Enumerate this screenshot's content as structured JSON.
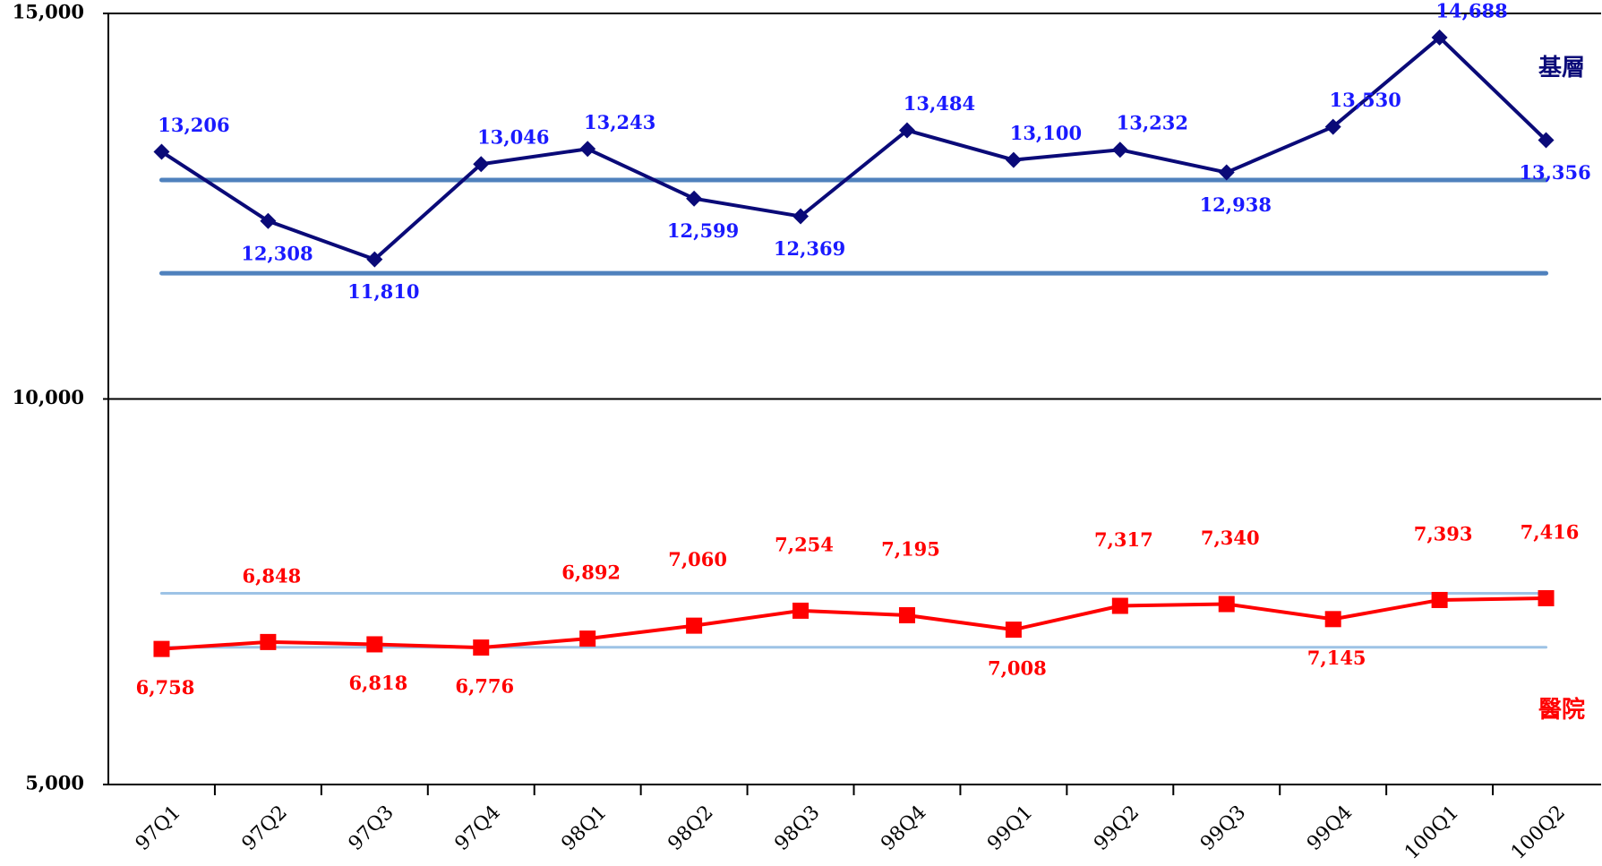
{
  "chart_data": {
    "type": "line",
    "categories": [
      "97Q1",
      "97Q2",
      "97Q3",
      "97Q4",
      "98Q1",
      "98Q2",
      "98Q3",
      "98Q4",
      "99Q1",
      "99Q2",
      "99Q3",
      "99Q4",
      "100Q1",
      "100Q2"
    ],
    "series": [
      {
        "name": "基層",
        "color": "#0a0a78",
        "marker": "diamond",
        "values": [
          13206,
          12308,
          11810,
          13046,
          13243,
          12599,
          12369,
          13484,
          13100,
          13232,
          12938,
          13530,
          14688,
          13356
        ],
        "value_labels": [
          "13,206",
          "12,308",
          "11,810",
          "13,046",
          "13,243",
          "12,599",
          "12,369",
          "13,484",
          "13,100",
          "13,232",
          "12,938",
          "13,530",
          "14,688",
          "13,356"
        ],
        "label_color": "#1a1aff"
      },
      {
        "name": "醫院",
        "color": "#ff0000",
        "marker": "square",
        "values": [
          6758,
          6848,
          6818,
          6776,
          6892,
          7060,
          7254,
          7195,
          7008,
          7317,
          7340,
          7145,
          7393,
          7416
        ],
        "value_labels": [
          "6,758",
          "6,848",
          "6,818",
          "6,776",
          "6,892",
          "7,060",
          "7,254",
          "7,195",
          "7,008",
          "7,317",
          "7,340",
          "7,145",
          "7,393",
          "7,416"
        ],
        "label_color": "#ff0000"
      }
    ],
    "reference_lines": [
      {
        "value": 12840,
        "color": "#4f81bd"
      },
      {
        "value": 11630,
        "color": "#4f81bd"
      },
      {
        "value": 7480,
        "color": "#9dc3e6"
      },
      {
        "value": 6780,
        "color": "#9dc3e6"
      }
    ],
    "ylim": [
      5000,
      15000
    ],
    "yticks": [
      {
        "value": 5000,
        "label": "5,000"
      },
      {
        "value": 10000,
        "label": "10,000"
      },
      {
        "value": 15000,
        "label": "15,000"
      }
    ],
    "grid": true
  }
}
